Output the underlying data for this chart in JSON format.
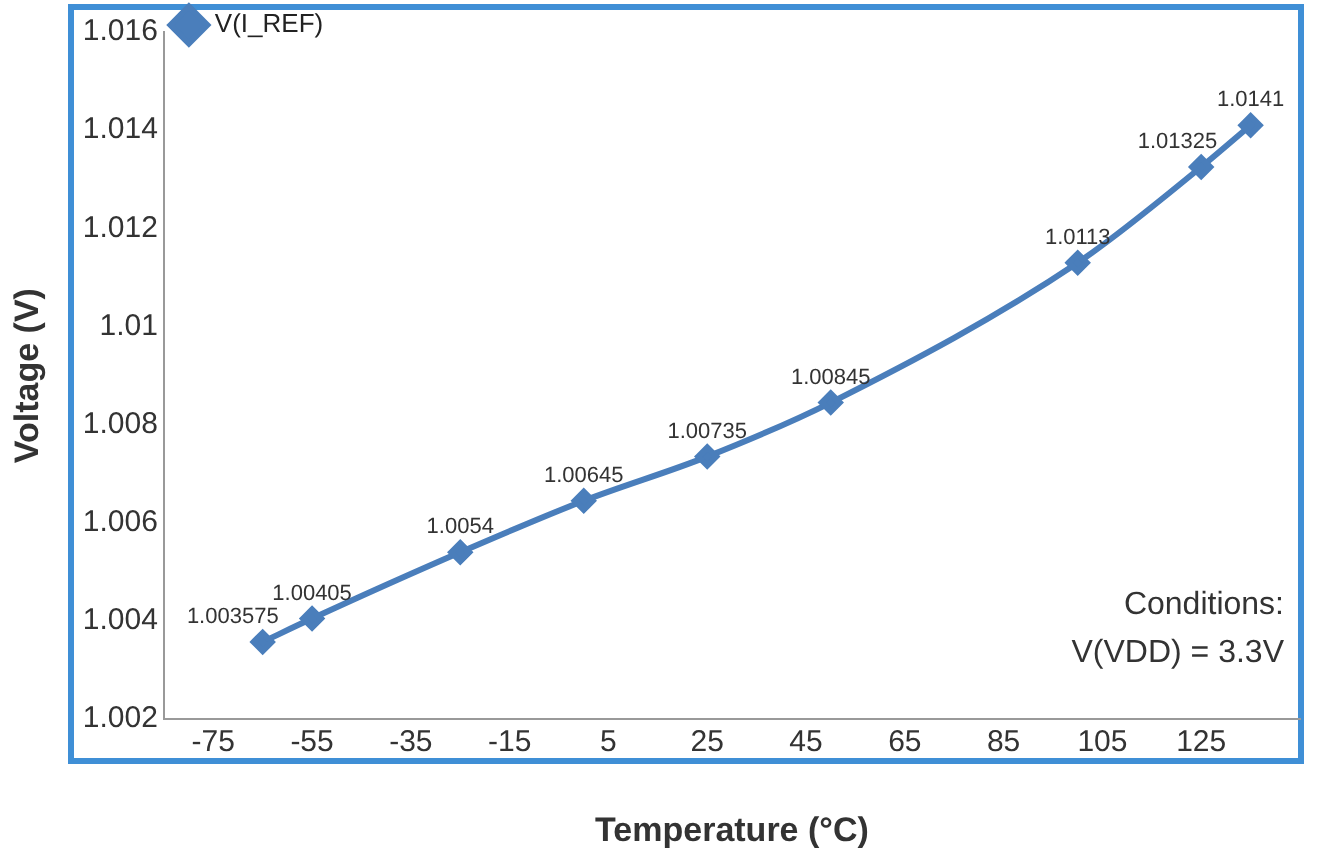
{
  "chart_data": {
    "type": "line",
    "xlabel": "Temperature (°C)",
    "ylabel": "Voltage (V)",
    "x": [
      -65,
      -55,
      -25,
      0,
      25,
      50,
      100,
      125,
      135
    ],
    "series": [
      {
        "name": "V(I_REF)",
        "color": "#4a7ebb",
        "values": [
          1.003575,
          1.00405,
          1.0054,
          1.00645,
          1.00735,
          1.00845,
          1.0113,
          1.01325,
          1.0141
        ]
      }
    ],
    "xlim": [
      -85,
      145
    ],
    "xticks": [
      -75,
      -55,
      -35,
      -15,
      5,
      25,
      45,
      65,
      85,
      105,
      125
    ],
    "ylim": [
      1.002,
      1.016
    ],
    "yticks": [
      1.002,
      1.004,
      1.006,
      1.008,
      1.01,
      1.012,
      1.014,
      1.016
    ],
    "data_labels": true,
    "legend": "top left",
    "marker": "diamond",
    "grid": false,
    "annotations": [
      "Conditions:",
      "V(VDD) = 3.3V"
    ]
  }
}
